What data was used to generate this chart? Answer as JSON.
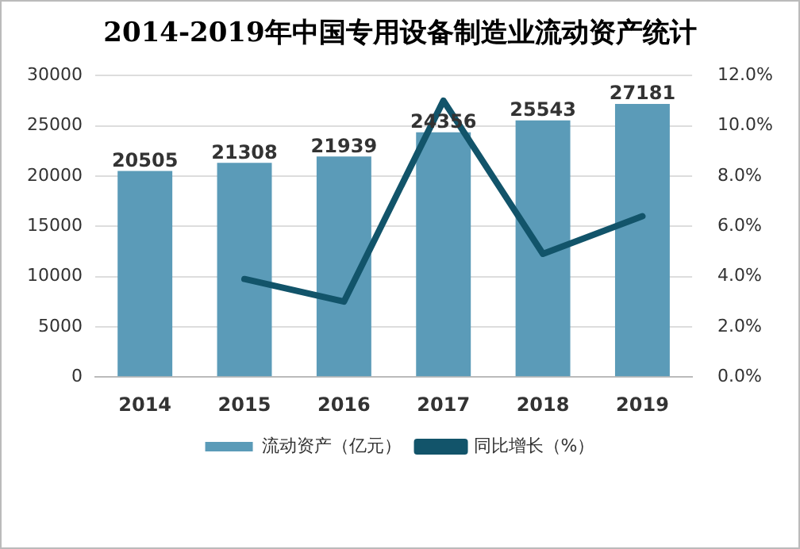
{
  "chart_data": {
    "type": "bar",
    "title": "2014-2019年中国专用设备制造业流动资产统计",
    "categories": [
      "2014",
      "2015",
      "2016",
      "2017",
      "2018",
      "2019"
    ],
    "series": [
      {
        "name": "流动资产（亿元）",
        "color": "#5b9bb8",
        "values": [
          20505,
          21308,
          21939,
          24356,
          25543,
          27181
        ],
        "value_labels": [
          "20505",
          "21308",
          "21939",
          "24356",
          "25543",
          "27181"
        ]
      },
      {
        "name": "同比增长（%）",
        "type": "line",
        "axis": "y2",
        "color": "#12546a",
        "values": [
          null,
          3.9,
          3.0,
          11.0,
          4.9,
          6.4
        ]
      }
    ],
    "ylim": [
      0,
      30000
    ],
    "yticks": [
      0,
      5000,
      10000,
      15000,
      20000,
      25000,
      30000
    ],
    "y2lim": [
      0,
      12
    ],
    "y2ticks": [
      {
        "value": 0,
        "label": "0.0%"
      },
      {
        "value": 2,
        "label": "2.0%"
      },
      {
        "value": 4,
        "label": "4.0%"
      },
      {
        "value": 6,
        "label": "6.0%"
      },
      {
        "value": 8,
        "label": "8.0%"
      },
      {
        "value": 10,
        "label": "10.0%"
      },
      {
        "value": 12,
        "label": "12.0%"
      }
    ],
    "grid": "y",
    "legend": "bottom",
    "marker": "none",
    "line_style": "solid"
  }
}
